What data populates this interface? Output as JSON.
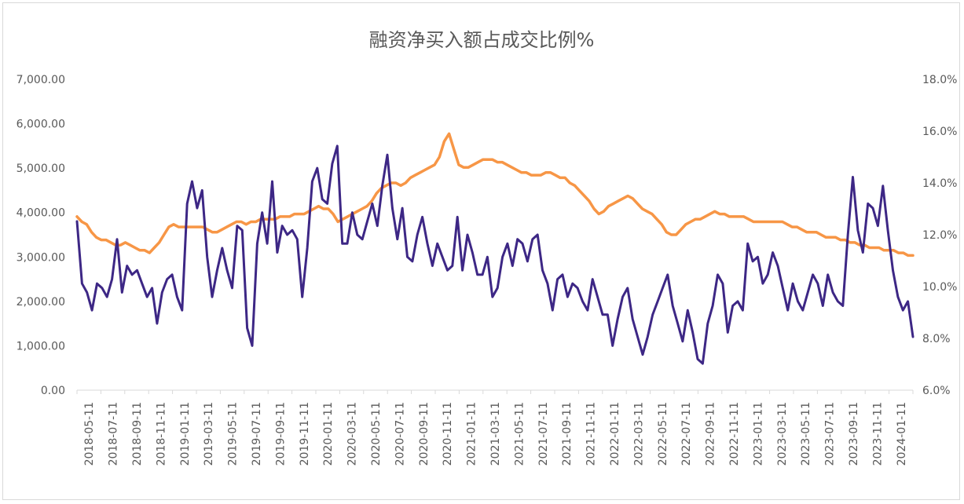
{
  "chart_data": {
    "type": "line",
    "title": "融资净买入额占成交比例%",
    "xlabel": "",
    "ylabel": "",
    "legend": "none",
    "grid": false,
    "x_tick_labels": [
      "2018-05-11",
      "2018-07-11",
      "2018-09-11",
      "2018-11-11",
      "2019-01-11",
      "2019-03-11",
      "2019-05-11",
      "2019-07-11",
      "2019-09-11",
      "2019-11-11",
      "2020-01-11",
      "2020-03-11",
      "2020-05-11",
      "2020-07-11",
      "2020-09-11",
      "2020-11-11",
      "2021-01-11",
      "2021-03-11",
      "2021-05-11",
      "2021-07-11",
      "2021-09-11",
      "2021-11-11",
      "2022-01-11",
      "2022-03-11",
      "2022-05-11",
      "2022-07-11",
      "2022-09-11",
      "2022-11-11",
      "2023-01-11",
      "2023-03-11",
      "2023-05-11",
      "2023-07-11",
      "2023-09-11",
      "2023-11-11",
      "2024-01-11"
    ],
    "y_left": {
      "ylim": [
        0,
        7000
      ],
      "tick_labels": [
        "0.00",
        "1,000.00",
        "2,000.00",
        "3,000.00",
        "4,000.00",
        "5,000.00",
        "6,000.00",
        "7,000.00"
      ]
    },
    "y_right": {
      "ylim": [
        6,
        18
      ],
      "tick_labels": [
        "6.0%",
        "8.0%",
        "10.0%",
        "12.0%",
        "14.0%",
        "16.0%",
        "18.0%"
      ]
    },
    "series": [
      {
        "axis": "left",
        "color": "#3d2785",
        "values": [
          3800,
          2400,
          2200,
          1800,
          2400,
          2300,
          2100,
          2500,
          3400,
          2200,
          2800,
          2600,
          2700,
          2400,
          2100,
          2300,
          1500,
          2200,
          2500,
          2600,
          2100,
          1800,
          4200,
          4700,
          4100,
          4500,
          3000,
          2100,
          2700,
          3200,
          2700,
          2300,
          3700,
          3600,
          1400,
          1000,
          3300,
          4000,
          3300,
          4700,
          3100,
          3700,
          3500,
          3600,
          3400,
          2100,
          3200,
          4700,
          5000,
          4300,
          4200,
          5100,
          5500,
          3300,
          3300,
          4000,
          3500,
          3400,
          3800,
          4200,
          3700,
          4600,
          5300,
          4100,
          3400,
          4100,
          3000,
          2900,
          3500,
          3900,
          3300,
          2800,
          3300,
          3000,
          2700,
          2800,
          3900,
          2700,
          3500,
          3100,
          2600,
          2600,
          3000,
          2100,
          2300,
          3000,
          3300,
          2800,
          3400,
          3300,
          2900,
          3400,
          3500,
          2700,
          2400,
          1800,
          2500,
          2600,
          2100,
          2400,
          2300,
          2000,
          1800,
          2500,
          2100,
          1700,
          1700,
          1000,
          1600,
          2100,
          2300,
          1600,
          1200,
          800,
          1200,
          1700,
          2000,
          2300,
          2600,
          1900,
          1500,
          1100,
          1800,
          1300,
          700,
          600,
          1500,
          1900,
          2600,
          2400,
          1300,
          1900,
          2000,
          1800,
          3300,
          2900,
          3000,
          2400,
          2600,
          3100,
          2800,
          2300,
          1800,
          2400,
          2000,
          1800,
          2200,
          2600,
          2400,
          1900,
          2600,
          2200,
          2000,
          1900,
          3500,
          4800,
          3600,
          3100,
          4200,
          4100,
          3700,
          4600,
          3600,
          2700,
          2100,
          1800,
          2000,
          1200
        ]
      },
      {
        "axis": "right",
        "color": "#f79646",
        "values": [
          12.7,
          12.5,
          12.4,
          12.1,
          11.9,
          11.8,
          11.8,
          11.7,
          11.6,
          11.6,
          11.7,
          11.6,
          11.5,
          11.4,
          11.4,
          11.3,
          11.5,
          11.7,
          12.0,
          12.3,
          12.4,
          12.3,
          12.3,
          12.3,
          12.3,
          12.3,
          12.3,
          12.2,
          12.1,
          12.1,
          12.2,
          12.3,
          12.4,
          12.5,
          12.5,
          12.4,
          12.5,
          12.5,
          12.6,
          12.6,
          12.6,
          12.6,
          12.7,
          12.7,
          12.7,
          12.8,
          12.8,
          12.8,
          12.9,
          13.0,
          13.1,
          13.0,
          13.0,
          12.8,
          12.5,
          12.6,
          12.7,
          12.8,
          12.9,
          13.0,
          13.1,
          13.3,
          13.6,
          13.8,
          13.9,
          14.0,
          14.0,
          13.9,
          14.0,
          14.2,
          14.3,
          14.4,
          14.5,
          14.6,
          14.7,
          15.0,
          15.6,
          15.9,
          15.3,
          14.7,
          14.6,
          14.6,
          14.7,
          14.8,
          14.9,
          14.9,
          14.9,
          14.8,
          14.8,
          14.7,
          14.6,
          14.5,
          14.4,
          14.4,
          14.3,
          14.3,
          14.3,
          14.4,
          14.4,
          14.3,
          14.2,
          14.2,
          14.0,
          13.9,
          13.7,
          13.5,
          13.3,
          13.0,
          12.8,
          12.9,
          13.1,
          13.2,
          13.3,
          13.4,
          13.5,
          13.4,
          13.2,
          13.0,
          12.9,
          12.8,
          12.6,
          12.4,
          12.1,
          12.0,
          12.0,
          12.2,
          12.4,
          12.5,
          12.6,
          12.6,
          12.7,
          12.8,
          12.9,
          12.8,
          12.8,
          12.7,
          12.7,
          12.7,
          12.7,
          12.6,
          12.5,
          12.5,
          12.5,
          12.5,
          12.5,
          12.5,
          12.5,
          12.4,
          12.3,
          12.3,
          12.2,
          12.1,
          12.1,
          12.1,
          12.0,
          11.9,
          11.9,
          11.9,
          11.8,
          11.8,
          11.7,
          11.7,
          11.6,
          11.6,
          11.5,
          11.5,
          11.5,
          11.4,
          11.4,
          11.4,
          11.3,
          11.3,
          11.2,
          11.2
        ]
      }
    ]
  }
}
